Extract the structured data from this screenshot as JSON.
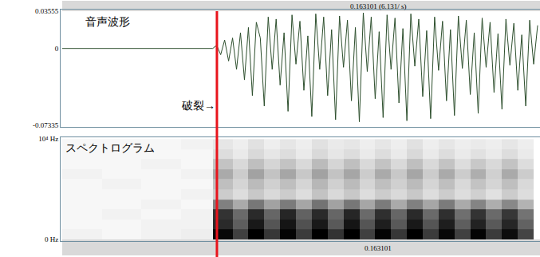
{
  "selection": {
    "start": 0.0781,
    "duration": 0.163101,
    "header": "0.163101 (6.131/ s)",
    "footer": "0.163101"
  },
  "chart_data": [
    {
      "type": "line",
      "title": "音声波形",
      "color": "#2d4f2d",
      "grid": false,
      "tick_labels": "y",
      "annotations": [
        {
          "text": "破裂→",
          "x": 0.0781,
          "y": -0.055
        }
      ],
      "xlim": [
        0,
        0.2412
      ],
      "ylim": [
        -0.07335,
        0.03555
      ],
      "yticks": [
        -0.07335,
        0,
        0.03555
      ],
      "x": [
        0,
        0.02,
        0.04,
        0.06,
        0.076,
        0.078,
        0.08,
        0.082,
        0.084,
        0.086,
        0.088,
        0.09,
        0.092,
        0.094,
        0.096,
        0.098,
        0.1,
        0.102,
        0.104,
        0.106,
        0.108,
        0.11,
        0.112,
        0.114,
        0.116,
        0.118,
        0.12,
        0.122,
        0.124,
        0.126,
        0.128,
        0.13,
        0.132,
        0.134,
        0.136,
        0.138,
        0.14,
        0.142,
        0.144,
        0.146,
        0.148,
        0.15,
        0.152,
        0.154,
        0.156,
        0.158,
        0.16,
        0.162,
        0.164,
        0.166,
        0.168,
        0.17,
        0.172,
        0.174,
        0.176,
        0.178,
        0.18,
        0.182,
        0.184,
        0.186,
        0.188,
        0.19,
        0.192,
        0.194,
        0.196,
        0.198,
        0.2,
        0.202,
        0.204,
        0.206,
        0.208,
        0.21,
        0.212,
        0.214,
        0.216,
        0.218,
        0.22,
        0.222,
        0.224,
        0.226,
        0.228,
        0.23,
        0.232,
        0.234,
        0.236,
        0.238,
        0.24
      ],
      "values": [
        0,
        0,
        0,
        0,
        0,
        0.003,
        -0.006,
        0.008,
        -0.012,
        0.01,
        -0.02,
        0.015,
        -0.03,
        0.02,
        -0.045,
        0.025,
        0.01,
        -0.055,
        0.03,
        -0.02,
        0.028,
        -0.035,
        0.015,
        -0.06,
        0.032,
        -0.015,
        0.026,
        -0.04,
        0.012,
        -0.065,
        0.033,
        -0.02,
        0.03,
        -0.045,
        0.018,
        -0.068,
        0.031,
        -0.018,
        0.027,
        -0.05,
        0.02,
        -0.07,
        0.034,
        -0.022,
        0.03,
        -0.048,
        0.016,
        -0.066,
        0.032,
        -0.02,
        0.029,
        -0.052,
        0.019,
        -0.069,
        0.033,
        -0.017,
        0.028,
        -0.046,
        0.017,
        -0.067,
        0.03,
        -0.021,
        0.026,
        -0.05,
        0.018,
        -0.064,
        0.031,
        -0.019,
        0.027,
        -0.044,
        0.015,
        -0.062,
        0.029,
        -0.018,
        0.025,
        -0.042,
        0.014,
        -0.058,
        0.028,
        -0.016,
        0.024,
        -0.04,
        0.013,
        -0.055,
        0.027,
        -0.015,
        0.022
      ]
    },
    {
      "type": "heatmap",
      "title": "スペクトログラム",
      "grid": false,
      "tick_labels": "y",
      "xlim": [
        0,
        0.2412
      ],
      "ylim": [
        0,
        10000
      ],
      "yticks": [
        {
          "value": 0,
          "label": "0 Hz"
        },
        {
          "value": 10000,
          "label": "10⁴ Hz"
        }
      ],
      "zlim": [
        0,
        60
      ],
      "x": [
        0.01,
        0.03,
        0.05,
        0.07,
        0.082,
        0.09,
        0.098,
        0.106,
        0.114,
        0.122,
        0.13,
        0.138,
        0.146,
        0.154,
        0.162,
        0.17,
        0.178,
        0.186,
        0.194,
        0.202,
        0.21,
        0.218,
        0.226,
        0.234
      ],
      "y": [
        500,
        1500,
        2500,
        3500,
        4500,
        5500,
        6500,
        7500,
        8500,
        9500
      ],
      "z": [
        [
          3,
          2,
          3,
          4,
          58,
          45,
          60,
          47,
          59,
          46,
          61,
          48,
          60,
          45,
          59,
          47,
          60,
          46,
          58,
          45,
          59,
          46,
          57,
          44
        ],
        [
          2,
          2,
          3,
          3,
          50,
          38,
          54,
          40,
          55,
          41,
          54,
          39,
          55,
          40,
          53,
          39,
          54,
          40,
          53,
          38,
          52,
          39,
          51,
          37
        ],
        [
          2,
          3,
          2,
          3,
          48,
          35,
          50,
          36,
          51,
          37,
          50,
          36,
          51,
          35,
          49,
          36,
          50,
          35,
          49,
          34,
          48,
          35,
          47,
          33
        ],
        [
          2,
          2,
          3,
          2,
          30,
          20,
          32,
          22,
          31,
          21,
          33,
          22,
          32,
          21,
          31,
          20,
          30,
          21,
          31,
          20,
          29,
          19,
          28,
          18
        ],
        [
          2,
          2,
          2,
          3,
          12,
          8,
          13,
          9,
          12,
          8,
          14,
          9,
          13,
          8,
          12,
          9,
          13,
          8,
          12,
          8,
          11,
          7,
          12,
          8
        ],
        [
          2,
          3,
          2,
          2,
          15,
          10,
          16,
          11,
          15,
          10,
          17,
          11,
          16,
          10,
          15,
          11,
          16,
          10,
          15,
          9,
          14,
          10,
          15,
          9
        ],
        [
          3,
          2,
          2,
          3,
          20,
          12,
          22,
          14,
          21,
          13,
          22,
          14,
          21,
          12,
          20,
          13,
          21,
          12,
          20,
          12,
          19,
          11,
          20,
          12
        ],
        [
          2,
          2,
          3,
          2,
          14,
          9,
          15,
          10,
          14,
          9,
          16,
          10,
          15,
          9,
          14,
          9,
          15,
          9,
          14,
          8,
          13,
          9,
          14,
          8
        ],
        [
          2,
          2,
          2,
          2,
          8,
          5,
          9,
          6,
          8,
          5,
          9,
          6,
          8,
          5,
          8,
          5,
          9,
          5,
          8,
          5,
          7,
          5,
          8,
          5
        ],
        [
          2,
          2,
          2,
          3,
          6,
          4,
          7,
          4,
          6,
          4,
          7,
          5,
          6,
          4,
          6,
          4,
          7,
          4,
          6,
          4,
          5,
          4,
          6,
          4
        ]
      ]
    }
  ]
}
